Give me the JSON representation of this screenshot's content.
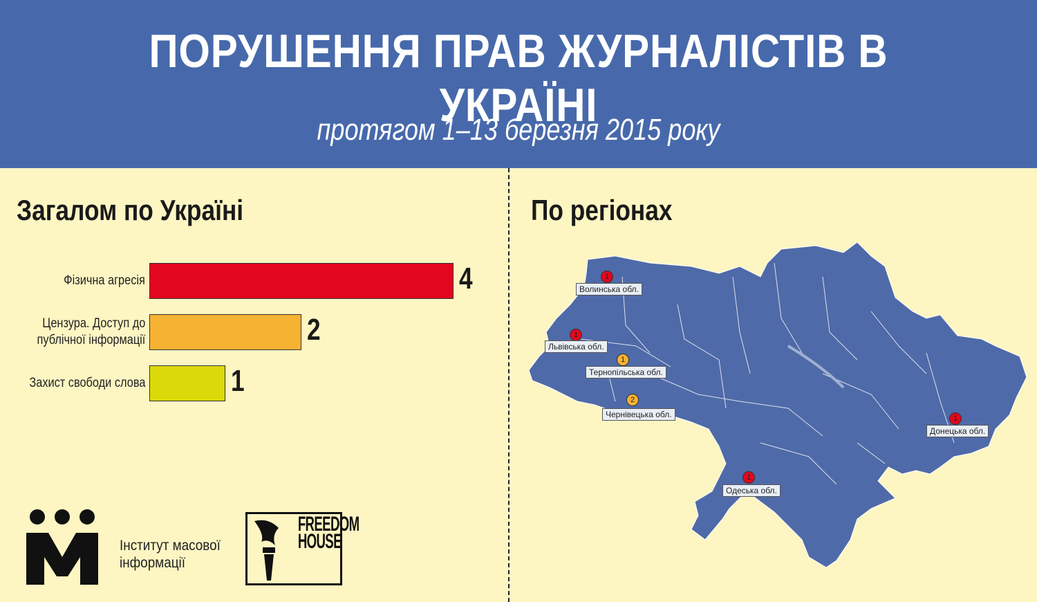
{
  "header": {
    "title": "ПОРУШЕННЯ ПРАВ ЖУРНАЛІСТІВ В УКРАЇНІ",
    "subtitle": "протягом 1–13 березня 2015 року"
  },
  "left": {
    "section_title": "Загалом по Україні"
  },
  "right": {
    "section_title": "По регіонах"
  },
  "colors": {
    "header_bg": "#4769ab",
    "page_bg": "#fdf6c3",
    "map_fill": "#4f6aa8",
    "physical": "#e2071e",
    "censorship": "#f6b233",
    "freedom": "#dbd90a"
  },
  "chart_data": {
    "type": "bar",
    "orientation": "horizontal",
    "categories": [
      "Фізична агресія",
      "Цензура. Доступ до публічної інформації",
      "Захист свободи слова"
    ],
    "category_lines": [
      [
        "Фізична агресія"
      ],
      [
        "Цензура. Доступ до",
        "публічної інформації"
      ],
      [
        "Захист свободи слова"
      ]
    ],
    "values": [
      4,
      2,
      1
    ],
    "colors": [
      "#e2071e",
      "#f6b233",
      "#dbd90a"
    ],
    "xlim": [
      0,
      4
    ]
  },
  "regions": [
    {
      "name": "Волинська обл.",
      "count": "1",
      "color": "#e2071e"
    },
    {
      "name": "Львівська обл.",
      "count": "1",
      "color": "#e2071e"
    },
    {
      "name": "Тернопільська обл.",
      "count": "1",
      "color": "#f6b233"
    },
    {
      "name": "Чернівецька обл.",
      "count": "2",
      "color": "#f6b233"
    },
    {
      "name": "Донецька обл.",
      "count": "1",
      "color": "#e2071e"
    },
    {
      "name": "Одеська обл.",
      "count": "1",
      "color": "#e2071e"
    }
  ],
  "logos": {
    "imi_line1": "Інститут масової",
    "imi_line2": "інформації",
    "fh_line1": "FREEDOM",
    "fh_line2": "HOUSE"
  }
}
